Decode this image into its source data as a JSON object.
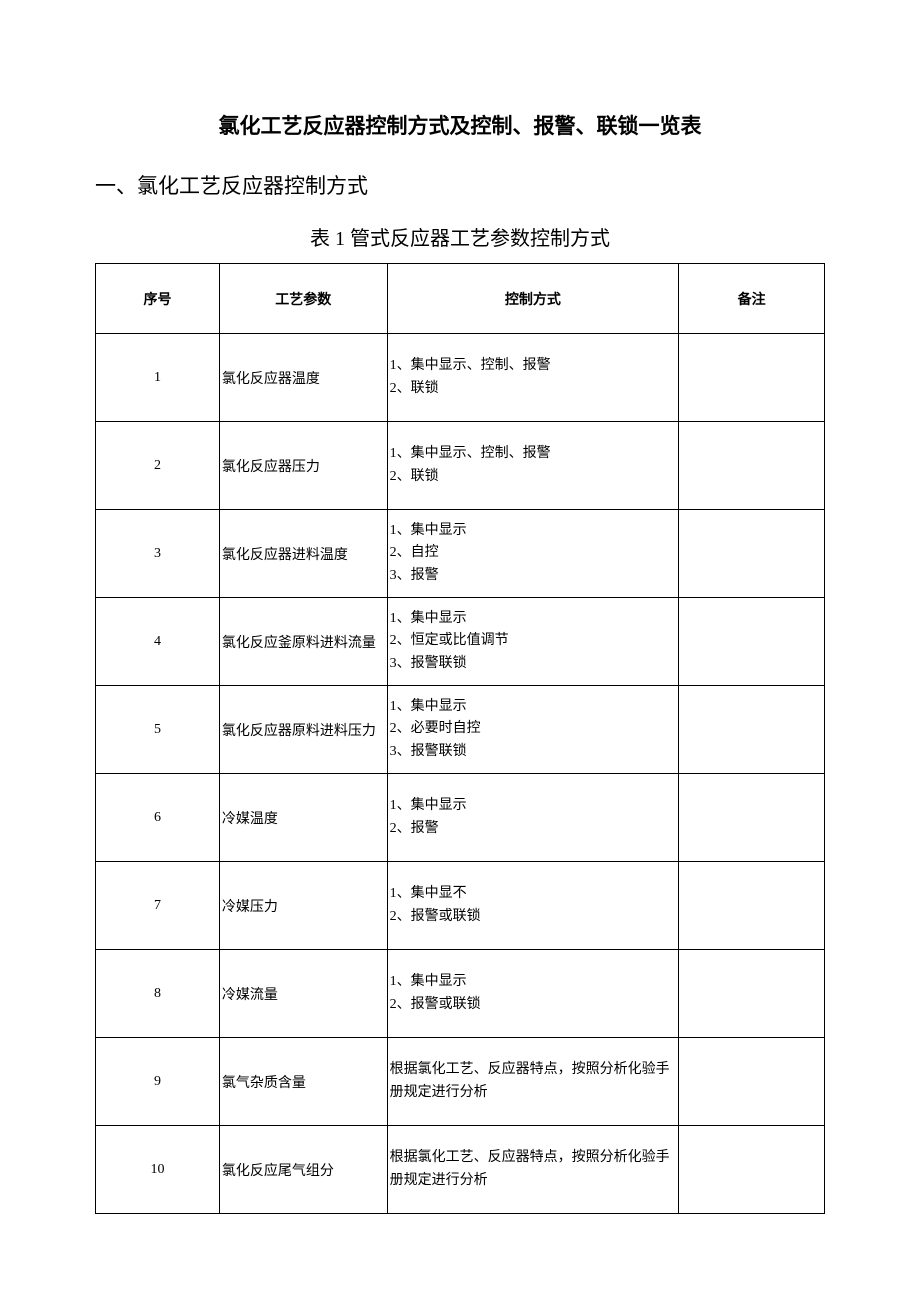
{
  "page": {
    "background_color": "#ffffff",
    "text_color": "#000000",
    "font_family": "SimSun",
    "title_fontsize": 21,
    "section_fontsize": 21,
    "table_title_fontsize": 20,
    "cell_fontsize": 14,
    "border_color": "#000000"
  },
  "titles": {
    "main": "氯化工艺反应器控制方式及控制、报警、联锁一览表",
    "section1": "一、氯化工艺反应器控制方式",
    "table1": "表 1 管式反应器工艺参数控制方式"
  },
  "table1": {
    "type": "table",
    "columns": [
      {
        "key": "seq",
        "label": "序号",
        "width_pct": 17,
        "align": "center"
      },
      {
        "key": "param",
        "label": "工艺参数",
        "width_pct": 23,
        "align": "left"
      },
      {
        "key": "ctrl",
        "label": "控制方式",
        "width_pct": 40,
        "align": "left"
      },
      {
        "key": "note",
        "label": "备注",
        "width_pct": 20,
        "align": "left"
      }
    ],
    "rows": [
      {
        "seq": "1",
        "param": "氯化反应器温度",
        "ctrl": "1、集中显示、控制、报警\n2、联锁",
        "note": ""
      },
      {
        "seq": "2",
        "param": "氯化反应器压力",
        "ctrl": "1、集中显示、控制、报警\n2、联锁",
        "note": ""
      },
      {
        "seq": "3",
        "param": "氯化反应器进料温度",
        "ctrl": "1、集中显示\n2、自控\n3、报警",
        "note": ""
      },
      {
        "seq": "4",
        "param": "氯化反应釜原料进料流量",
        "ctrl": "1、集中显示\n2、恒定或比值调节\n3、报警联锁",
        "note": ""
      },
      {
        "seq": "5",
        "param": "氯化反应器原料进料压力",
        "ctrl": "1、集中显示\n2、必要时自控\n3、报警联锁",
        "note": ""
      },
      {
        "seq": "6",
        "param": "冷媒温度",
        "ctrl": "1、集中显示\n2、报警",
        "note": ""
      },
      {
        "seq": "7",
        "param": "冷媒压力",
        "ctrl": "1、集中显不\n2、报警或联锁",
        "note": ""
      },
      {
        "seq": "8",
        "param": "冷媒流量",
        "ctrl": "1、集中显示\n2、报警或联锁",
        "note": ""
      },
      {
        "seq": "9",
        "param": "氯气杂质含量",
        "ctrl": "根据氯化工艺、反应器特点，按照分析化验手册规定进行分析",
        "note": ""
      },
      {
        "seq": "10",
        "param": "氯化反应尾气组分",
        "ctrl": "根据氯化工艺、反应器特点，按照分析化验手册规定进行分析",
        "note": ""
      }
    ]
  }
}
